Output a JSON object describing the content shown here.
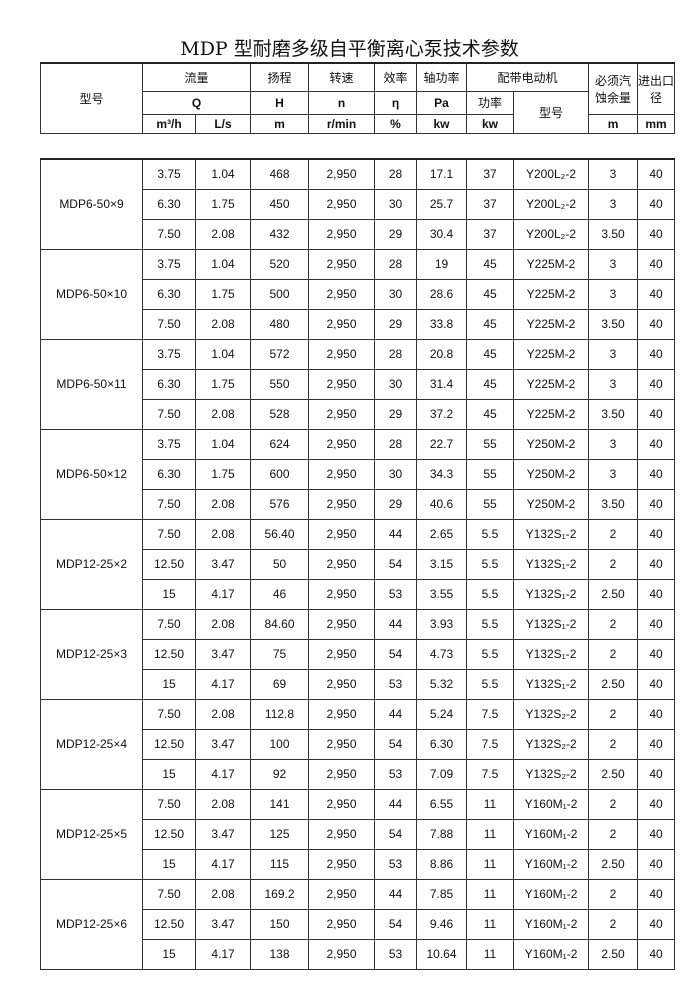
{
  "title": "MDP 型耐磨多级自平衡离心泵技术参数",
  "header": {
    "model": "型号",
    "flow": "流量",
    "head": "扬程",
    "speed": "转速",
    "eff": "效率",
    "shaft_power": "轴功率",
    "motor": "配带电动机",
    "npsh": "必须汽蚀余量",
    "port": "进出口径",
    "Q": "Q",
    "H": "H",
    "n": "n",
    "eta": "η",
    "Pa": "Pa",
    "motor_power": "功率",
    "motor_model": "型号",
    "u_m3h": "m³/h",
    "u_ls": "L/s",
    "u_m": "m",
    "u_rmin": "r/min",
    "u_pct": "%",
    "u_kw": "kw",
    "u_kw2": "kw",
    "u_npsh": "m",
    "u_mm": "mm"
  },
  "groups": [
    {
      "model": "MDP6-50×9",
      "rows": [
        [
          "3.75",
          "1.04",
          "468",
          "2,950",
          "28",
          "17.1",
          "37",
          "Y200L₂-2",
          "3",
          "40"
        ],
        [
          "6.30",
          "1.75",
          "450",
          "2,950",
          "30",
          "25.7",
          "37",
          "Y200L₂-2",
          "3",
          "40"
        ],
        [
          "7.50",
          "2.08",
          "432",
          "2,950",
          "29",
          "30.4",
          "37",
          "Y200L₂-2",
          "3.50",
          "40"
        ]
      ]
    },
    {
      "model": "MDP6-50×10",
      "rows": [
        [
          "3.75",
          "1.04",
          "520",
          "2,950",
          "28",
          "19",
          "45",
          "Y225M-2",
          "3",
          "40"
        ],
        [
          "6.30",
          "1.75",
          "500",
          "2,950",
          "30",
          "28.6",
          "45",
          "Y225M-2",
          "3",
          "40"
        ],
        [
          "7.50",
          "2.08",
          "480",
          "2,950",
          "29",
          "33.8",
          "45",
          "Y225M-2",
          "3.50",
          "40"
        ]
      ]
    },
    {
      "model": "MDP6-50×11",
      "rows": [
        [
          "3.75",
          "1.04",
          "572",
          "2,950",
          "28",
          "20.8",
          "45",
          "Y225M-2",
          "3",
          "40"
        ],
        [
          "6.30",
          "1.75",
          "550",
          "2,950",
          "30",
          "31.4",
          "45",
          "Y225M-2",
          "3",
          "40"
        ],
        [
          "7.50",
          "2.08",
          "528",
          "2,950",
          "29",
          "37.2",
          "45",
          "Y225M-2",
          "3.50",
          "40"
        ]
      ]
    },
    {
      "model": "MDP6-50×12",
      "rows": [
        [
          "3.75",
          "1.04",
          "624",
          "2,950",
          "28",
          "22.7",
          "55",
          "Y250M-2",
          "3",
          "40"
        ],
        [
          "6.30",
          "1.75",
          "600",
          "2,950",
          "30",
          "34.3",
          "55",
          "Y250M-2",
          "3",
          "40"
        ],
        [
          "7.50",
          "2.08",
          "576",
          "2,950",
          "29",
          "40.6",
          "55",
          "Y250M-2",
          "3.50",
          "40"
        ]
      ]
    },
    {
      "model": "MDP12-25×2",
      "rows": [
        [
          "7.50",
          "2.08",
          "56.40",
          "2,950",
          "44",
          "2.65",
          "5.5",
          "Y132S₁-2",
          "2",
          "40"
        ],
        [
          "12.50",
          "3.47",
          "50",
          "2,950",
          "54",
          "3.15",
          "5.5",
          "Y132S₁-2",
          "2",
          "40"
        ],
        [
          "15",
          "4.17",
          "46",
          "2,950",
          "53",
          "3.55",
          "5.5",
          "Y132S₁-2",
          "2.50",
          "40"
        ]
      ]
    },
    {
      "model": "MDP12-25×3",
      "rows": [
        [
          "7.50",
          "2.08",
          "84.60",
          "2,950",
          "44",
          "3.93",
          "5.5",
          "Y132S₁-2",
          "2",
          "40"
        ],
        [
          "12.50",
          "3.47",
          "75",
          "2,950",
          "54",
          "4.73",
          "5.5",
          "Y132S₁-2",
          "2",
          "40"
        ],
        [
          "15",
          "4.17",
          "69",
          "2,950",
          "53",
          "5.32",
          "5.5",
          "Y132S₁-2",
          "2.50",
          "40"
        ]
      ]
    },
    {
      "model": "MDP12-25×4",
      "rows": [
        [
          "7.50",
          "2.08",
          "112.8",
          "2,950",
          "44",
          "5.24",
          "7.5",
          "Y132S₂-2",
          "2",
          "40"
        ],
        [
          "12.50",
          "3.47",
          "100",
          "2,950",
          "54",
          "6.30",
          "7.5",
          "Y132S₂-2",
          "2",
          "40"
        ],
        [
          "15",
          "4.17",
          "92",
          "2,950",
          "53",
          "7.09",
          "7.5",
          "Y132S₂-2",
          "2.50",
          "40"
        ]
      ]
    },
    {
      "model": "MDP12-25×5",
      "rows": [
        [
          "7.50",
          "2.08",
          "141",
          "2,950",
          "44",
          "6.55",
          "11",
          "Y160M₁-2",
          "2",
          "40"
        ],
        [
          "12.50",
          "3.47",
          "125",
          "2,950",
          "54",
          "7.88",
          "11",
          "Y160M₁-2",
          "2",
          "40"
        ],
        [
          "15",
          "4.17",
          "115",
          "2,950",
          "53",
          "8.86",
          "11",
          "Y160M₁-2",
          "2.50",
          "40"
        ]
      ]
    },
    {
      "model": "MDP12-25×6",
      "rows": [
        [
          "7.50",
          "2.08",
          "169.2",
          "2,950",
          "44",
          "7.85",
          "11",
          "Y160M₁-2",
          "2",
          "40"
        ],
        [
          "12.50",
          "3.47",
          "150",
          "2,950",
          "54",
          "9.46",
          "11",
          "Y160M₁-2",
          "2",
          "40"
        ],
        [
          "15",
          "4.17",
          "138",
          "2,950",
          "53",
          "10.64",
          "11",
          "Y160M₁-2",
          "2.50",
          "40"
        ]
      ]
    }
  ]
}
